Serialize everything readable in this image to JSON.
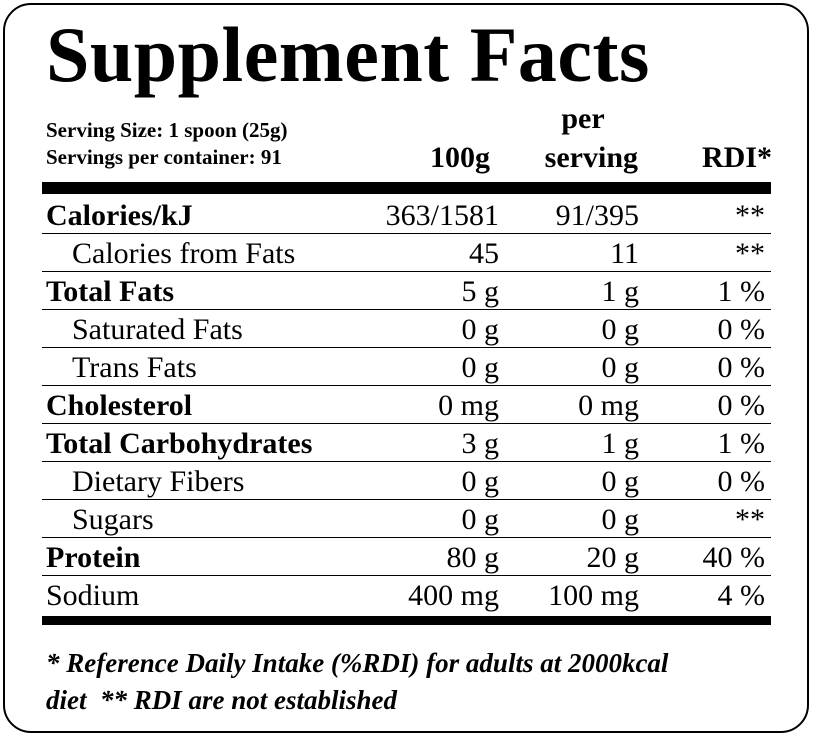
{
  "title": "Supplement Facts",
  "serving": {
    "size": "Serving Size: 1 spoon (25g)",
    "per_container": "Servings per container: 91"
  },
  "columns": {
    "per100": "100g",
    "per_serving_1": "per",
    "per_serving_2": "serving",
    "rdi": "RDI*"
  },
  "rows": [
    {
      "name": "Calories/kJ",
      "per100": "363/1581",
      "serving": "91/395",
      "rdi": "**"
    },
    {
      "name": "Calories from Fats",
      "per100": "45",
      "serving": "11",
      "rdi": "**"
    },
    {
      "name": "Total Fats",
      "per100": "5 g",
      "serving": "1 g",
      "rdi": "1 %"
    },
    {
      "name": "Saturated Fats",
      "per100": "0 g",
      "serving": "0 g",
      "rdi": "0 %"
    },
    {
      "name": "Trans Fats",
      "per100": "0 g",
      "serving": "0 g",
      "rdi": "0 %"
    },
    {
      "name": "Cholesterol",
      "per100": "0 mg",
      "serving": "0 mg",
      "rdi": "0 %"
    },
    {
      "name": "Total Carbohydrates",
      "per100": "3 g",
      "serving": "1 g",
      "rdi": "1 %"
    },
    {
      "name": "Dietary Fibers",
      "per100": "0 g",
      "serving": "0 g",
      "rdi": "0 %"
    },
    {
      "name": "Sugars",
      "per100": "0 g",
      "serving": "0 g",
      "rdi": "**"
    },
    {
      "name": "Protein",
      "per100": "80 g",
      "serving": "20 g",
      "rdi": "40 %"
    },
    {
      "name": "Sodium",
      "per100": "400 mg",
      "serving": "100 mg",
      "rdi": "4 %"
    }
  ],
  "footnote": {
    "line1": "* Reference Daily Intake (%RDI) for adults at 2000kcal",
    "line2": "diet  ** RDI are not established"
  }
}
